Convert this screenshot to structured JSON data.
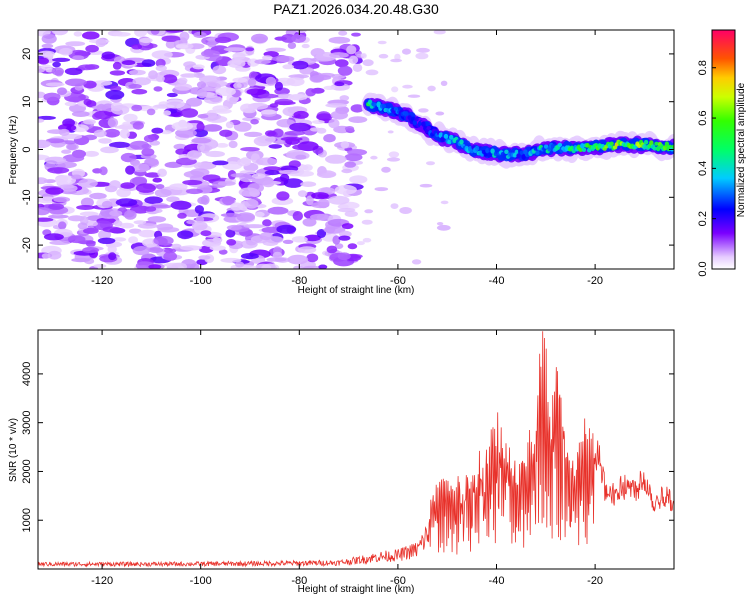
{
  "figure": {
    "title": "PAZ1.2026.034.20.48.G30"
  },
  "chart_data": [
    {
      "type": "heatmap",
      "name": "spectrogram",
      "xlabel": "Height of straight line (km)",
      "ylabel": "Frequency (Hz)",
      "xlim": [
        -133,
        -4
      ],
      "ylim": [
        -25,
        25
      ],
      "xticks": [
        -120,
        -100,
        -80,
        -60,
        -40,
        -20
      ],
      "yticks": [
        -20,
        -10,
        0,
        10,
        20
      ],
      "colorbar": {
        "label": "Normalized spectral amplitude",
        "range": [
          0,
          0.95
        ],
        "ticks": [
          0.0,
          0.2,
          0.4,
          0.6,
          0.8
        ]
      },
      "features": [
        {
          "description": "broadband noise",
          "x_range": [
            -133,
            -68
          ],
          "y_range": [
            -25,
            25
          ],
          "level": 0.15
        },
        {
          "description": "signal track",
          "points": [
            [
              -66,
              9.5,
              0.45
            ],
            [
              -62,
              8.5,
              0.3
            ],
            [
              -58,
              7,
              0.25
            ],
            [
              -55,
              5,
              0.2
            ],
            [
              -52,
              3,
              0.3
            ],
            [
              -48,
              1.5,
              0.35
            ],
            [
              -45,
              0,
              0.3
            ],
            [
              -42,
              -0.5,
              0.35
            ],
            [
              -38,
              -1,
              0.35
            ],
            [
              -34,
              -1,
              0.3
            ],
            [
              -31,
              0,
              0.4
            ],
            [
              -28,
              0.5,
              0.35
            ],
            [
              -24,
              0.2,
              0.5
            ],
            [
              -20,
              0.5,
              0.55
            ],
            [
              -15,
              1,
              0.6
            ],
            [
              -10,
              1,
              0.55
            ],
            [
              -6,
              0.5,
              0.5
            ]
          ]
        }
      ]
    },
    {
      "type": "line",
      "name": "snr",
      "xlabel": "Height of straight line (km)",
      "ylabel": "SNR (10 * v/v)",
      "xlim": [
        -133,
        -4
      ],
      "ylim": [
        0,
        4900
      ],
      "xticks": [
        -120,
        -100,
        -80,
        -60,
        -40,
        -20
      ],
      "yticks": [
        1000,
        2000,
        3000,
        4000
      ],
      "color": "#e8312a",
      "envelope": [
        [
          -133,
          100
        ],
        [
          -110,
          100
        ],
        [
          -90,
          110
        ],
        [
          -80,
          120
        ],
        [
          -72,
          130
        ],
        [
          -68,
          180
        ],
        [
          -64,
          250
        ],
        [
          -60,
          280
        ],
        [
          -56,
          400
        ],
        [
          -54,
          700
        ],
        [
          -53,
          1700
        ],
        [
          -50,
          1900
        ],
        [
          -46,
          1800
        ],
        [
          -44,
          2200
        ],
        [
          -42,
          2600
        ],
        [
          -40,
          3200
        ],
        [
          -38,
          2800
        ],
        [
          -36,
          2200
        ],
        [
          -34,
          2600
        ],
        [
          -32,
          3300
        ],
        [
          -31,
          4900
        ],
        [
          -30,
          4600
        ],
        [
          -29,
          2800
        ],
        [
          -28,
          4700
        ],
        [
          -27,
          4100
        ],
        [
          -26,
          2900
        ],
        [
          -25,
          2100
        ],
        [
          -24,
          2400
        ],
        [
          -23,
          2700
        ],
        [
          -22,
          3000
        ],
        [
          -21,
          2900
        ],
        [
          -20,
          2800
        ],
        [
          -19,
          2400
        ],
        [
          -18,
          1800
        ],
        [
          -16,
          1700
        ],
        [
          -14,
          1900
        ],
        [
          -12,
          1800
        ],
        [
          -10,
          2100
        ],
        [
          -8,
          1500
        ],
        [
          -6,
          1700
        ],
        [
          -4,
          1500
        ]
      ]
    }
  ]
}
